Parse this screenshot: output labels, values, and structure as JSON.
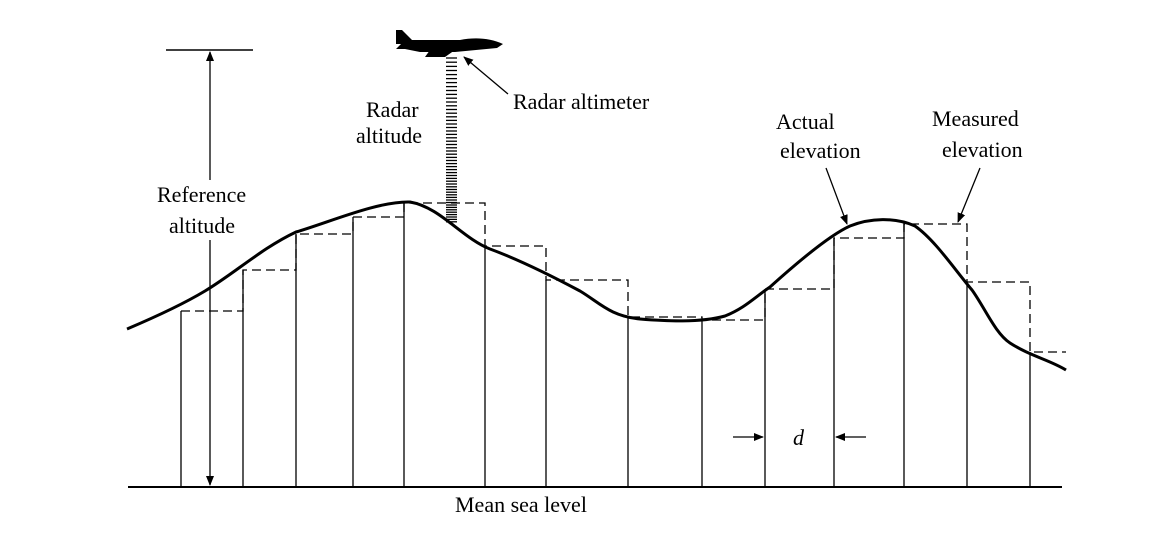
{
  "labels": {
    "radar_altitude_line1": "Radar",
    "radar_altitude_line2": "altitude",
    "radar_altimeter": "Radar altimeter",
    "reference_altitude_line1": "Reference",
    "reference_altitude_line2": "altitude",
    "actual_elevation_line1": "Actual",
    "actual_elevation_line2": "elevation",
    "measured_elevation_line1": "Measured",
    "measured_elevation_line2": "elevation",
    "spacing": "d",
    "baseline": "Mean sea level"
  },
  "colors": {
    "ink": "#000000",
    "background": "#ffffff"
  }
}
